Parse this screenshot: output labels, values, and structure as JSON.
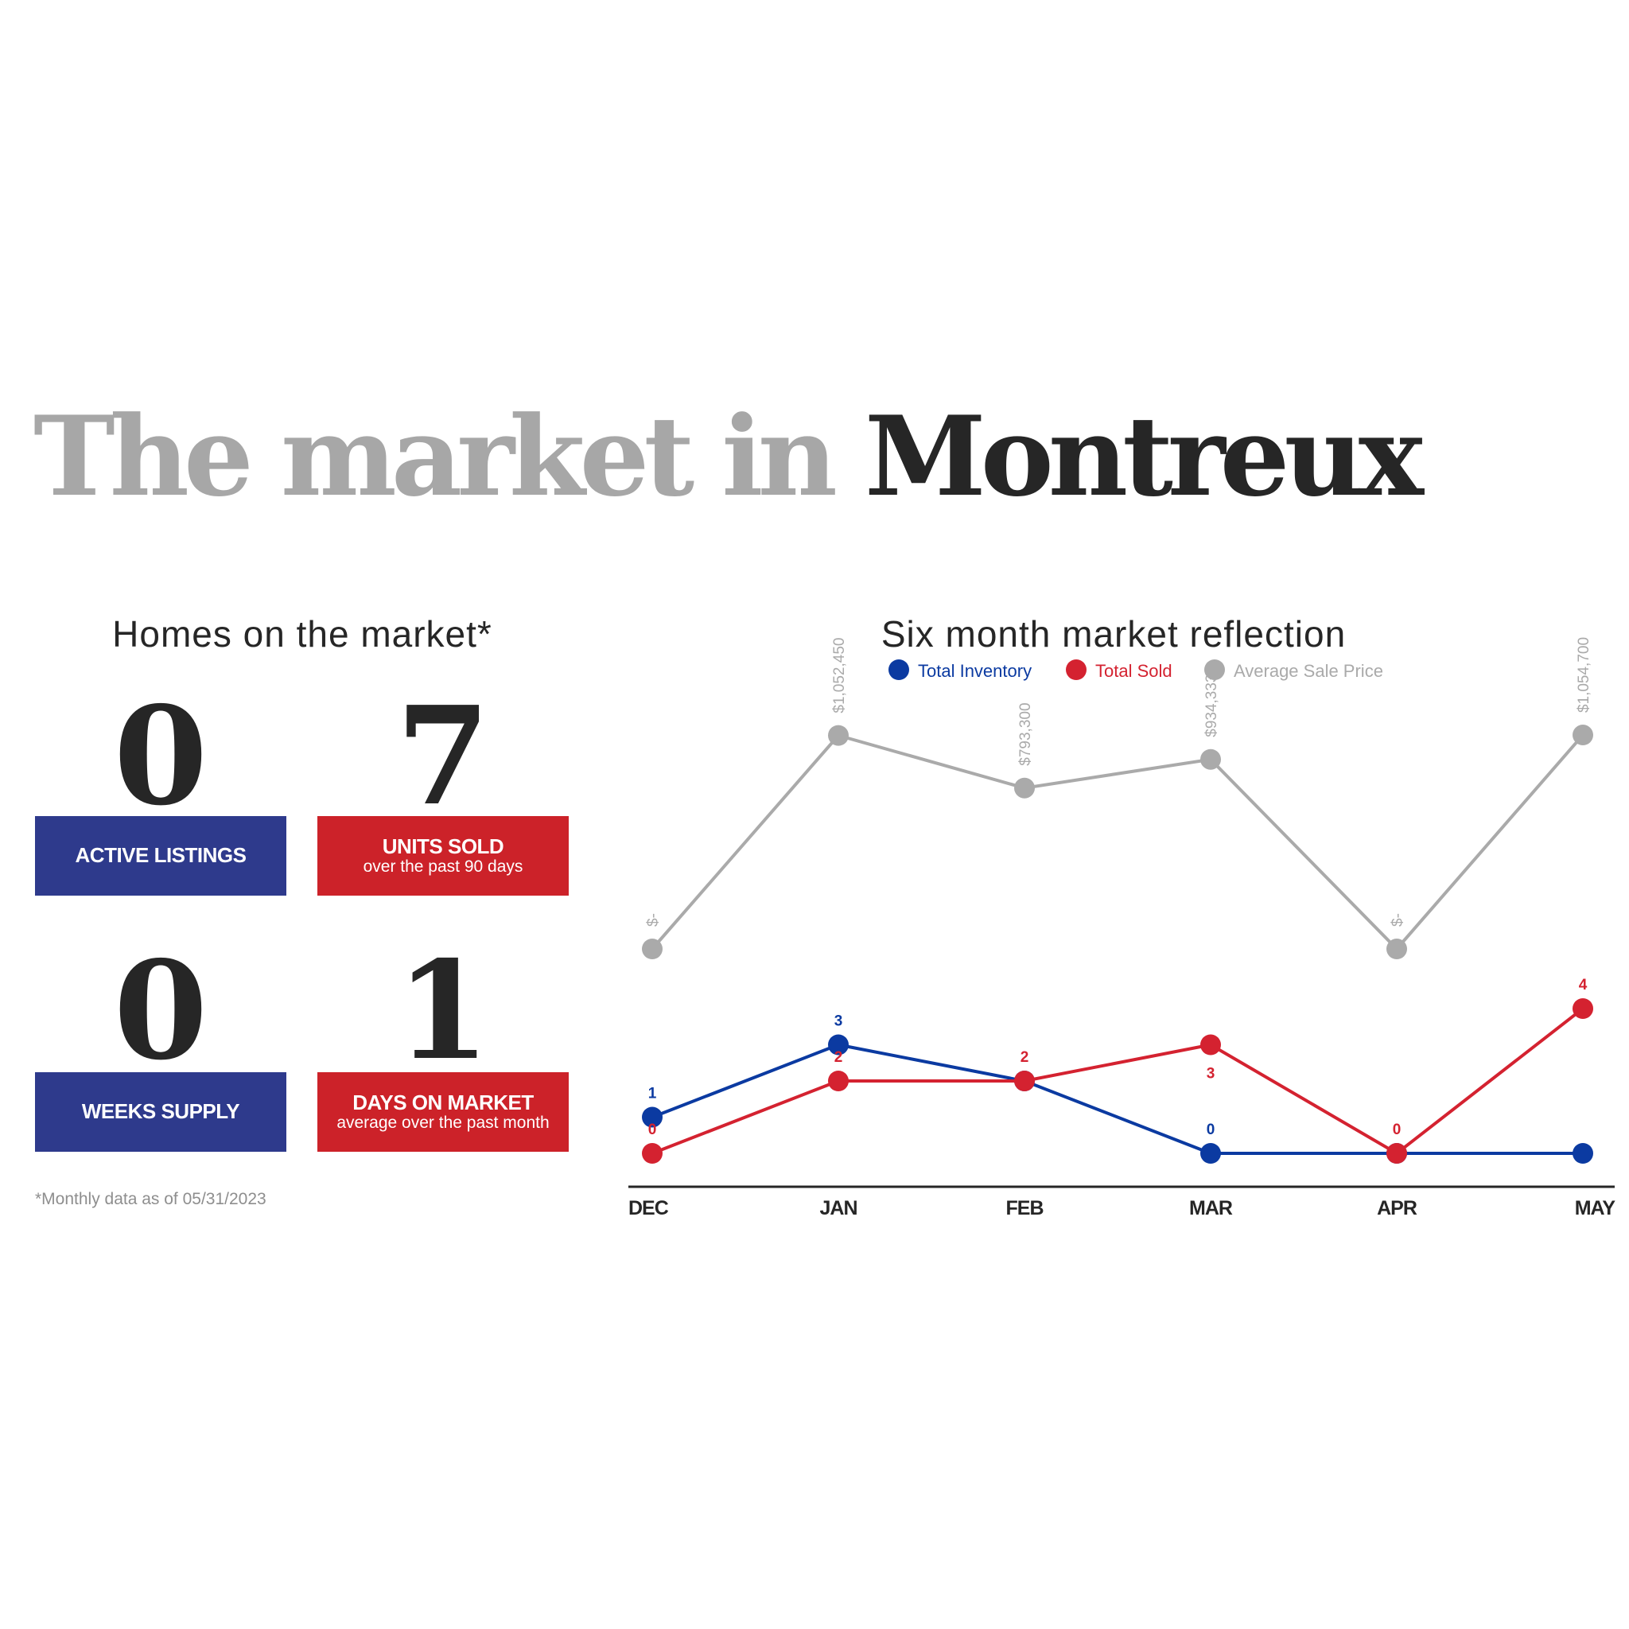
{
  "title": {
    "prefix": "The market in ",
    "place": "Montreux"
  },
  "homes": {
    "heading": "Homes on the market*",
    "stats": [
      {
        "value": "0",
        "label": "ACTIVE LISTINGS",
        "sub": ""
      },
      {
        "value": "7",
        "label": "UNITS SOLD",
        "sub": "over the past 90 days"
      },
      {
        "value": "0",
        "label": "WEEKS SUPPLY",
        "sub": ""
      },
      {
        "value": "1",
        "label": "DAYS ON MARKET",
        "sub": "average over the past month"
      }
    ],
    "footnote": "*Monthly data as of 05/31/2023"
  },
  "colors": {
    "inventory": "#0b3aa1",
    "sold": "#d42230",
    "price": "#aaaaaa",
    "stat_blue": "#2e3a8c",
    "stat_red": "#cc2229"
  },
  "chart_data": {
    "type": "line",
    "title": "Six month market reflection",
    "categories": [
      "DEC",
      "JAN",
      "FEB",
      "MAR",
      "APR",
      "MAY"
    ],
    "series": [
      {
        "name": "Total Inventory",
        "values": [
          1,
          3,
          2,
          0,
          0,
          0
        ],
        "labels": [
          "1",
          "3",
          "",
          "0",
          "",
          ""
        ]
      },
      {
        "name": "Total Sold",
        "values": [
          0,
          2,
          2,
          3,
          0,
          4
        ],
        "labels": [
          "0",
          "2",
          "2",
          "3",
          "0",
          "4"
        ]
      },
      {
        "name": "Average Sale Price",
        "values": [
          0,
          1052450,
          793300,
          934333,
          0,
          1054700
        ],
        "labels": [
          "$-",
          "$1,052,450",
          "$793,300",
          "$934,333",
          "$-",
          "$1,054,700"
        ]
      }
    ],
    "legend": "top-center",
    "grid": false
  }
}
